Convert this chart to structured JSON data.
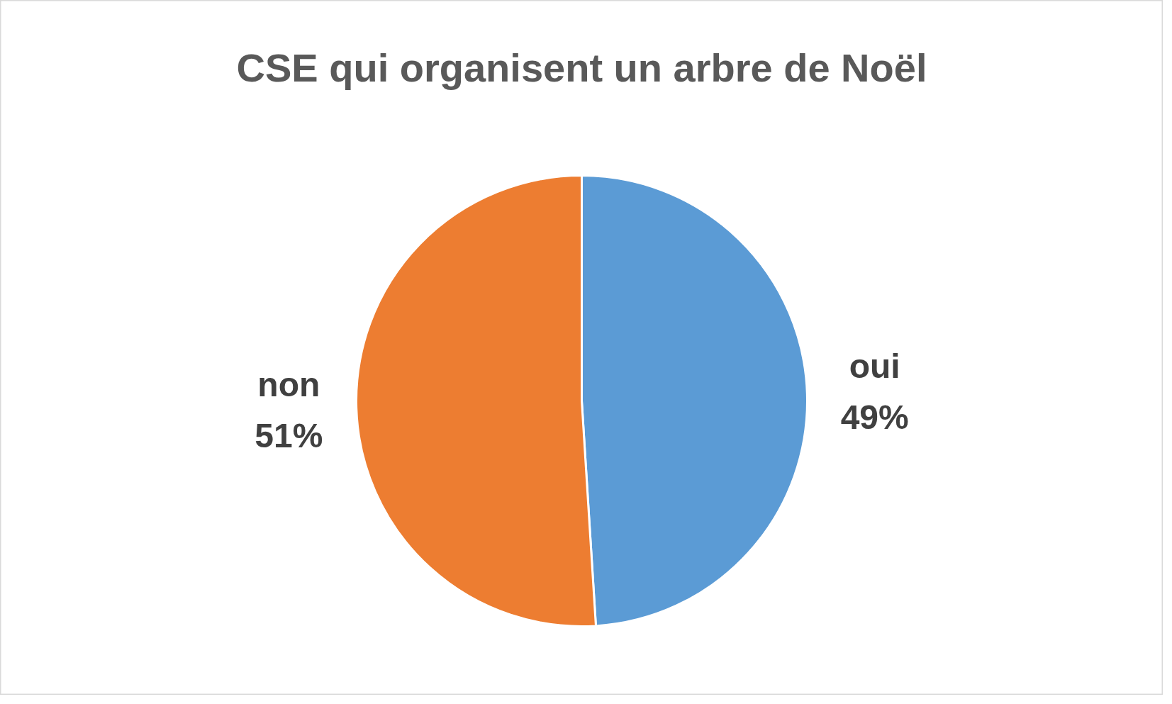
{
  "chart_data": {
    "type": "pie",
    "title": "CSE qui organisent un arbre de Noël",
    "categories": [
      "oui",
      "non"
    ],
    "values": [
      49,
      51
    ],
    "colors": [
      "#5b9bd5",
      "#ed7d31"
    ],
    "value_labels": [
      "49%",
      "51%"
    ]
  }
}
